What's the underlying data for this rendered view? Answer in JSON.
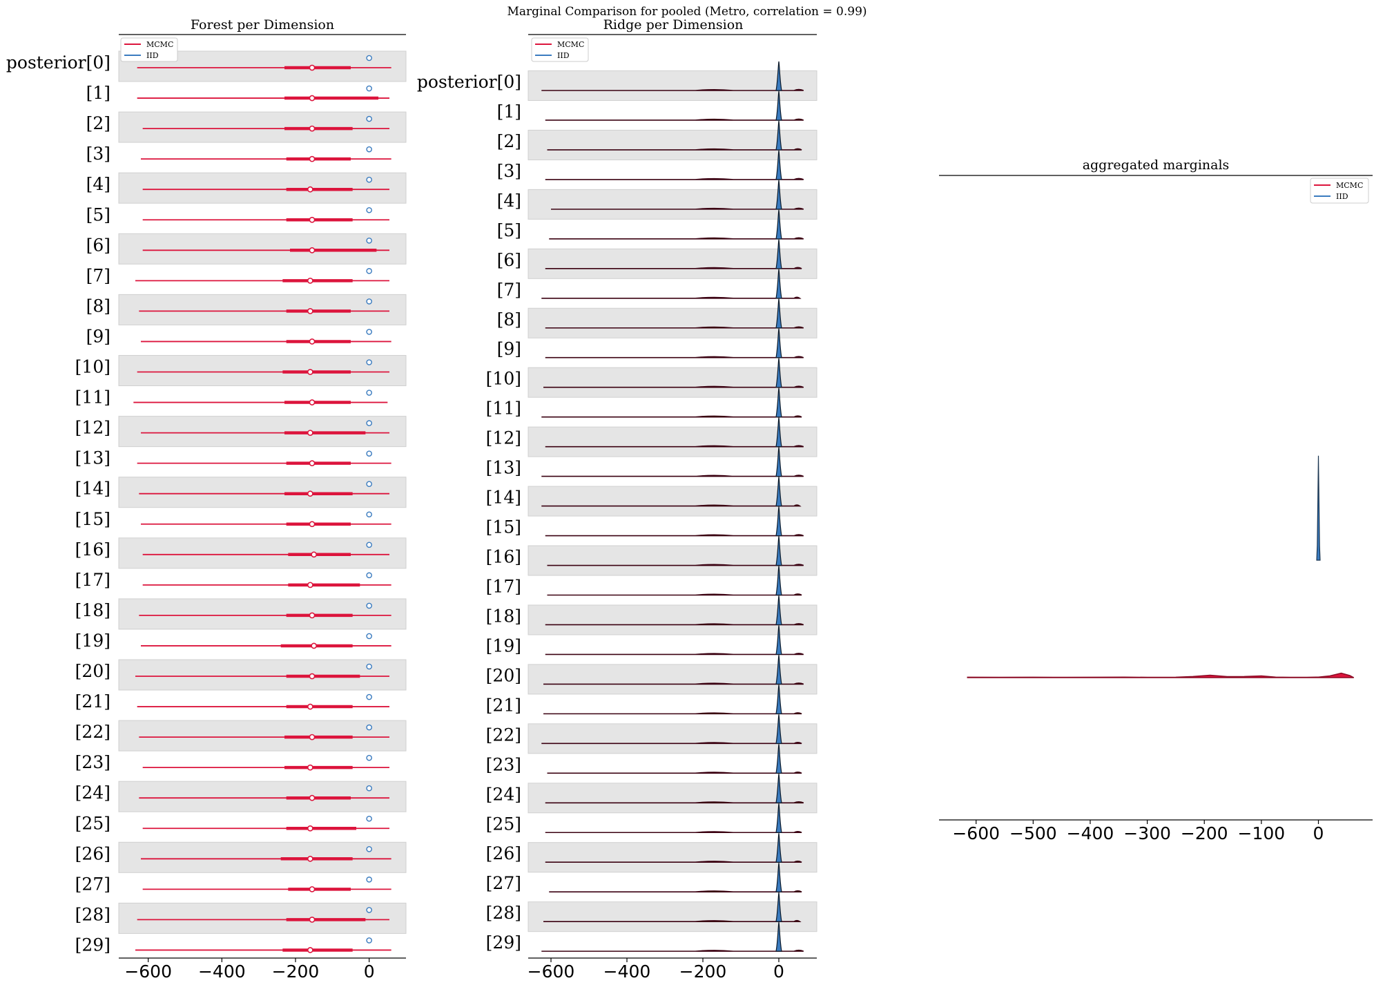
{
  "suptitle": "Marginal Comparison for pooled (Metro, correlation = 0.99)",
  "colors": {
    "mcmc": "#dc143c",
    "iid": "#3a7bbf",
    "band": "#e5e5e5",
    "axis": "#000000"
  },
  "chart_data": [
    {
      "type": "forest",
      "title": "Forest per Dimension",
      "xlim": [
        -680,
        100
      ],
      "xticks": [
        -600,
        -400,
        -200,
        0
      ],
      "xtick_labels": [
        "−600",
        "−400",
        "−200",
        "0"
      ],
      "legend": {
        "position": "top-left",
        "entries": [
          "MCMC",
          "IID"
        ]
      },
      "labels": [
        "posterior[0]",
        "[1]",
        "[2]",
        "[3]",
        "[4]",
        "[5]",
        "[6]",
        "[7]",
        "[8]",
        "[9]",
        "[10]",
        "[11]",
        "[12]",
        "[13]",
        "[14]",
        "[15]",
        "[16]",
        "[17]",
        "[18]",
        "[19]",
        "[20]",
        "[21]",
        "[22]",
        "[23]",
        "[24]",
        "[25]",
        "[26]",
        "[27]",
        "[28]",
        "[29]"
      ],
      "series": [
        {
          "name": "MCMC",
          "hdi_low": [
            -630,
            -630,
            -615,
            -620,
            -615,
            -615,
            -615,
            -635,
            -625,
            -620,
            -630,
            -640,
            -620,
            -630,
            -625,
            -620,
            -615,
            -615,
            -625,
            -620,
            -635,
            -630,
            -625,
            -615,
            -625,
            -615,
            -620,
            -615,
            -630,
            -635
          ],
          "hdi_high": [
            60,
            55,
            55,
            60,
            55,
            55,
            55,
            55,
            55,
            60,
            55,
            50,
            55,
            60,
            55,
            60,
            55,
            60,
            60,
            60,
            55,
            55,
            55,
            55,
            55,
            55,
            60,
            60,
            55,
            60
          ],
          "q25": [
            -230,
            -230,
            -230,
            -225,
            -225,
            -225,
            -215,
            -235,
            -225,
            -225,
            -235,
            -230,
            -230,
            -225,
            -230,
            -225,
            -220,
            -220,
            -225,
            -240,
            -225,
            -225,
            -230,
            -230,
            -225,
            -225,
            -240,
            -220,
            -225,
            -235
          ],
          "q75": [
            -50,
            25,
            -45,
            -50,
            -45,
            -45,
            20,
            -45,
            -50,
            -50,
            -50,
            -50,
            -10,
            -50,
            -45,
            -50,
            -50,
            -25,
            -45,
            -45,
            -25,
            -45,
            -45,
            -45,
            -50,
            -35,
            -45,
            -50,
            -10,
            -45
          ],
          "median": [
            -155,
            -155,
            -155,
            -155,
            -160,
            -155,
            -155,
            -160,
            -160,
            -155,
            -160,
            -155,
            -160,
            -155,
            -160,
            -155,
            -150,
            -160,
            -155,
            -150,
            -155,
            -160,
            -155,
            -160,
            -155,
            -160,
            -160,
            -155,
            -155,
            -160
          ]
        },
        {
          "name": "IID",
          "median": [
            0,
            0,
            0,
            0,
            0,
            0,
            0,
            0,
            0,
            0,
            0,
            0,
            0,
            0,
            0,
            0,
            0,
            0,
            0,
            0,
            0,
            0,
            0,
            0,
            0,
            0,
            0,
            0,
            0,
            0
          ]
        }
      ]
    },
    {
      "type": "ridge",
      "title": "Ridge per Dimension",
      "xlim": [
        -660,
        100
      ],
      "xticks": [
        -600,
        -400,
        -200,
        0
      ],
      "xtick_labels": [
        "−600",
        "−400",
        "−200",
        "0"
      ],
      "legend": {
        "position": "top-left",
        "entries": [
          "MCMC",
          "IID"
        ]
      },
      "labels": [
        "posterior[0]",
        "[1]",
        "[2]",
        "[3]",
        "[4]",
        "[5]",
        "[6]",
        "[7]",
        "[8]",
        "[9]",
        "[10]",
        "[11]",
        "[12]",
        "[13]",
        "[14]",
        "[15]",
        "[16]",
        "[17]",
        "[18]",
        "[19]",
        "[20]",
        "[21]",
        "[22]",
        "[23]",
        "[24]",
        "[25]",
        "[26]",
        "[27]",
        "[28]",
        "[29]"
      ],
      "series": [
        {
          "name": "MCMC",
          "x_min": [
            -625,
            -615,
            -610,
            -615,
            -600,
            -605,
            -615,
            -625,
            -615,
            -615,
            -620,
            -625,
            -615,
            -625,
            -625,
            -615,
            -610,
            -610,
            -615,
            -615,
            -620,
            -620,
            -625,
            -610,
            -615,
            -615,
            -615,
            -605,
            -620,
            -625
          ],
          "x_max": [
            65,
            65,
            60,
            65,
            65,
            65,
            60,
            55,
            65,
            65,
            65,
            60,
            65,
            65,
            55,
            65,
            65,
            60,
            65,
            65,
            65,
            60,
            60,
            60,
            65,
            60,
            60,
            60,
            55,
            65
          ]
        },
        {
          "name": "IID",
          "center": 0,
          "spread": 6
        }
      ]
    },
    {
      "type": "area",
      "title": "aggregated marginals",
      "xlim": [
        -665,
        95
      ],
      "xticks": [
        -600,
        -500,
        -400,
        -300,
        -200,
        -100,
        0
      ],
      "xtick_labels": [
        "−600",
        "−500",
        "−400",
        "−300",
        "−200",
        "−100",
        "0"
      ],
      "legend": {
        "position": "top-right",
        "entries": [
          "MCMC",
          "IID"
        ]
      },
      "series": [
        {
          "name": "MCMC",
          "x": [
            -615,
            -560,
            -500,
            -440,
            -380,
            -340,
            -300,
            -250,
            -220,
            -190,
            -160,
            -130,
            -100,
            -75,
            -50,
            -20,
            0,
            20,
            40,
            55,
            62
          ],
          "density": [
            0.0006,
            0.0005,
            0.0006,
            0.0005,
            0.0006,
            0.0007,
            0.0005,
            0.0006,
            0.0016,
            0.0035,
            0.0015,
            0.0016,
            0.0025,
            0.0008,
            0.0005,
            0.0005,
            0.0008,
            0.0025,
            0.0065,
            0.003,
            0.0
          ]
        },
        {
          "name": "IID",
          "x": [
            -3,
            -2,
            -1,
            0,
            1,
            2,
            3
          ],
          "density": [
            0.0,
            0.05,
            0.2,
            0.36,
            0.2,
            0.05,
            0.0
          ]
        }
      ]
    }
  ]
}
